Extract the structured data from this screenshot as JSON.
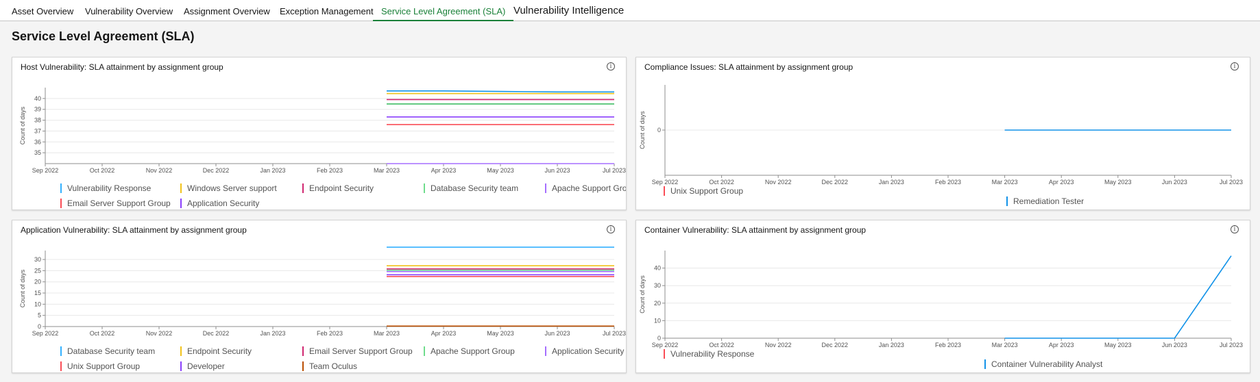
{
  "tabs": [
    {
      "label": "Asset Overview",
      "active": false
    },
    {
      "label": "Vulnerability Overview",
      "active": false
    },
    {
      "label": "Assignment Overview",
      "active": false
    },
    {
      "label": "Exception Management",
      "active": false
    },
    {
      "label": "Service Level Agreement (SLA)",
      "active": true
    },
    {
      "label": "Vulnerability Intelligence",
      "active": false
    }
  ],
  "page_title": "Service Level Agreement (SLA)",
  "panels": [
    {
      "title": "Host Vulnerability: SLA attainment by assignment group",
      "chart_data": {
        "type": "line",
        "x": [
          "Sep 2022",
          "Oct 2022",
          "Nov 2022",
          "Dec 2022",
          "Jan 2023",
          "Feb 2023",
          "Mar 2023",
          "Apr 2023",
          "May 2023",
          "Jun 2023",
          "Jul 2023"
        ],
        "ylabel": "Count of days",
        "yticks": [
          35,
          36,
          37,
          38,
          39,
          40
        ],
        "ylim": [
          34,
          41
        ],
        "series": [
          {
            "name": "Vulnerability Response",
            "color": "#1192e8",
            "values": [
              null,
              null,
              null,
              null,
              null,
              null,
              40.7,
              40.7,
              40.65,
              40.6,
              40.6
            ]
          },
          {
            "name": "Windows Server support",
            "color": "#f1c21b",
            "values": [
              null,
              null,
              null,
              null,
              null,
              null,
              40.45,
              40.45,
              40.45,
              40.45,
              40.45
            ]
          },
          {
            "name": "Endpoint Security",
            "color": "#d02670",
            "values": [
              null,
              null,
              null,
              null,
              null,
              null,
              39.9,
              39.9,
              39.9,
              39.9,
              39.9
            ]
          },
          {
            "name": "Database Security team",
            "color": "#42be65",
            "values": [
              null,
              null,
              null,
              null,
              null,
              null,
              39.5,
              39.5,
              39.5,
              39.5,
              39.5
            ]
          },
          {
            "name": "Apache Support Group",
            "color": "#8a3ffc",
            "values": [
              null,
              null,
              null,
              null,
              null,
              null,
              38.3,
              38.3,
              38.3,
              38.3,
              38.3
            ]
          },
          {
            "name": "Email Server Support Group",
            "color": "#fa4d56",
            "values": [
              null,
              null,
              null,
              null,
              null,
              null,
              37.6,
              37.6,
              37.6,
              37.6,
              37.6
            ]
          },
          {
            "name": "Application Security",
            "color": "#a56eff",
            "values": [
              null,
              null,
              null,
              null,
              null,
              null,
              34.0,
              34.0,
              34.0,
              34.0,
              34.0
            ]
          }
        ],
        "legend": [
          "Vulnerability Response",
          "Windows Server support",
          "Endpoint Security",
          "Database Security team",
          "Apache Support Group",
          "Email Server Support Group",
          "Application Security"
        ],
        "legend_colors": [
          "#33b1ff",
          "#f1c21b",
          "#d02670",
          "#6fdc8c",
          "#a56eff",
          "#fa4d56",
          "#8a3ffc"
        ]
      }
    },
    {
      "title": "Compliance Issues: SLA attainment by assignment group",
      "chart_data": {
        "type": "line",
        "x": [
          "Sep 2022",
          "Oct 2022",
          "Nov 2022",
          "Dec 2022",
          "Jan 2023",
          "Feb 2023",
          "Mar 2023",
          "Apr 2023",
          "May 2023",
          "Jun 2023",
          "Jul 2023"
        ],
        "ylabel": "Count of days",
        "yticks": [
          0
        ],
        "ylim": [
          -1,
          1
        ],
        "series": [
          {
            "name": "Remediation Tester",
            "color": "#1192e8",
            "values": [
              null,
              null,
              null,
              null,
              null,
              null,
              0,
              0,
              0,
              0,
              0
            ]
          }
        ],
        "legend": [
          "Unix Support Group",
          "Remediation Tester"
        ],
        "legend_colors": [
          "#fa4d56",
          "#1192e8"
        ]
      }
    },
    {
      "title": "Application Vulnerability: SLA attainment by assignment group",
      "chart_data": {
        "type": "line",
        "x": [
          "Sep 2022",
          "Oct 2022",
          "Nov 2022",
          "Dec 2022",
          "Jan 2023",
          "Feb 2023",
          "Mar 2023",
          "Apr 2023",
          "May 2023",
          "Jun 2023",
          "Jul 2023"
        ],
        "ylabel": "Count of days",
        "yticks": [
          0,
          5,
          10,
          15,
          20,
          25,
          30
        ],
        "ylim": [
          0,
          34
        ],
        "series": [
          {
            "name": "Database Security team",
            "color": "#33b1ff",
            "values": [
              null,
              null,
              null,
              null,
              null,
              null,
              35.5,
              35.5,
              35.5,
              35.5,
              35.5
            ]
          },
          {
            "name": "Endpoint Security",
            "color": "#f1c21b",
            "values": [
              null,
              null,
              null,
              null,
              null,
              null,
              27.2,
              27.2,
              27.2,
              27.2,
              27.2
            ]
          },
          {
            "name": "Email Server Support Group",
            "color": "#d02670",
            "values": [
              null,
              null,
              null,
              null,
              null,
              null,
              25.8,
              25.8,
              25.8,
              25.8,
              25.8
            ]
          },
          {
            "name": "Apache Support Group",
            "color": "#6fdc8c",
            "values": [
              null,
              null,
              null,
              null,
              null,
              null,
              25.2,
              25.2,
              25.2,
              25.2,
              25.2
            ]
          },
          {
            "name": "Application Security",
            "color": "#a56eff",
            "values": [
              null,
              null,
              null,
              null,
              null,
              null,
              24.6,
              24.6,
              24.6,
              24.6,
              24.6
            ]
          },
          {
            "name": "Unix Support Group",
            "color": "#fa4d56",
            "values": [
              null,
              null,
              null,
              null,
              null,
              null,
              22.4,
              22.4,
              22.4,
              22.4,
              22.4
            ]
          },
          {
            "name": "Developer",
            "color": "#8a3ffc",
            "values": [
              null,
              null,
              null,
              null,
              null,
              null,
              23.2,
              23.2,
              23.2,
              23.2,
              23.2
            ]
          },
          {
            "name": "Team Oculus",
            "color": "#ba4e00",
            "values": [
              null,
              null,
              null,
              null,
              null,
              null,
              0.2,
              0.2,
              0.2,
              0.2,
              0.2
            ]
          }
        ],
        "legend": [
          "Database Security team",
          "Endpoint Security",
          "Email Server Support Group",
          "Apache Support Group",
          "Application Security",
          "Unix Support Group",
          "Developer",
          "Team Oculus"
        ],
        "legend_colors": [
          "#33b1ff",
          "#f1c21b",
          "#d02670",
          "#6fdc8c",
          "#a56eff",
          "#fa4d56",
          "#8a3ffc",
          "#ba4e00"
        ]
      }
    },
    {
      "title": "Container Vulnerability: SLA attainment by assignment group",
      "chart_data": {
        "type": "line",
        "x": [
          "Sep 2022",
          "Oct 2022",
          "Nov 2022",
          "Dec 2022",
          "Jan 2023",
          "Feb 2023",
          "Mar 2023",
          "Apr 2023",
          "May 2023",
          "Jun 2023",
          "Jul 2023"
        ],
        "ylabel": "Count of days",
        "yticks": [
          0,
          10,
          20,
          30,
          40
        ],
        "ylim": [
          0,
          50
        ],
        "series": [
          {
            "name": "Container Vulnerability Analyst",
            "color": "#1192e8",
            "values": [
              null,
              null,
              null,
              null,
              null,
              null,
              0,
              0,
              0,
              0,
              47
            ]
          }
        ],
        "legend": [
          "Vulnerability Response",
          "Container Vulnerability Analyst"
        ],
        "legend_colors": [
          "#fa4d56",
          "#1192e8"
        ]
      }
    }
  ]
}
